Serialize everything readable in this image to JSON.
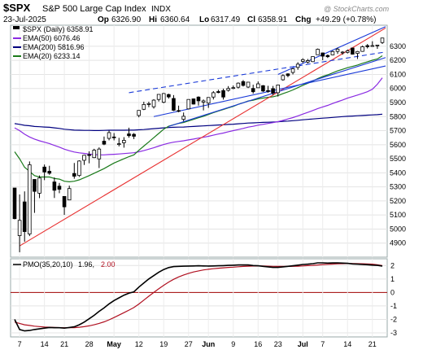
{
  "header": {
    "symbol": "$SPX",
    "name": "S&P 500 Large Cap Index",
    "exchange": "INDX",
    "date": "23-Jul-2025",
    "ohlc": {
      "open_label": "Op",
      "open": "6326.90",
      "high_label": "Hi",
      "high": "6360.64",
      "low_label": "Lo",
      "low": "6317.49",
      "close_label": "Cl",
      "close": "6358.91",
      "change_label": "Chg",
      "change": "+49.29 (+0.78%)"
    },
    "watermark": "@ StockCharts.com"
  },
  "legend": {
    "price": "$SPX (Daily) 6358.91",
    "ema50": "EMA(50) 6076.46",
    "ema200": "EMA(200) 5816.96",
    "ema20": "EMA(20) 6233.14"
  },
  "pmo_legend": {
    "label": "PMO(35,20,10)",
    "value": "1.96,",
    "signal": "2.00"
  },
  "colors": {
    "candle_up": "#000000",
    "candle_down": "#000000",
    "ema20": "#1a7a1a",
    "ema50": "#8a2be2",
    "ema200": "#000080",
    "trendline_red": "#e83030",
    "trendline_blue": "#1a3ad8",
    "pmo": "#000000",
    "pmo_signal": "#b01020",
    "zero_line": "#a00000"
  },
  "x_axis": {
    "labels": [
      "7",
      "14",
      "21",
      "28",
      "May",
      "12",
      "19",
      "27",
      "Jun",
      "9",
      "16",
      "23",
      "Jul",
      "7",
      "14",
      "21"
    ],
    "bold": [
      "May",
      "Jun",
      "Jul"
    ]
  },
  "chart_data": [
    {
      "type": "candlestick",
      "title": "$SPX S&P 500 Large Cap Index",
      "ylim": [
        4800,
        6450
      ],
      "y_ticks": [
        4900,
        5000,
        5100,
        5200,
        5300,
        5400,
        5500,
        5600,
        5700,
        5800,
        5900,
        6000,
        6100,
        6200,
        6300
      ],
      "grid": true,
      "dates": [
        "2025-04-04",
        "2025-04-07",
        "2025-04-08",
        "2025-04-09",
        "2025-04-10",
        "2025-04-11",
        "2025-04-14",
        "2025-04-15",
        "2025-04-16",
        "2025-04-17",
        "2025-04-21",
        "2025-04-22",
        "2025-04-23",
        "2025-04-24",
        "2025-04-25",
        "2025-04-28",
        "2025-04-29",
        "2025-04-30",
        "2025-05-01",
        "2025-05-02",
        "2025-05-05",
        "2025-05-06",
        "2025-05-07",
        "2025-05-08",
        "2025-05-09",
        "2025-05-12",
        "2025-05-13",
        "2025-05-14",
        "2025-05-15",
        "2025-05-16",
        "2025-05-19",
        "2025-05-20",
        "2025-05-21",
        "2025-05-22",
        "2025-05-23",
        "2025-05-27",
        "2025-05-28",
        "2025-05-29",
        "2025-05-30",
        "2025-06-02",
        "2025-06-03",
        "2025-06-04",
        "2025-06-05",
        "2025-06-06",
        "2025-06-09",
        "2025-06-10",
        "2025-06-11",
        "2025-06-12",
        "2025-06-13",
        "2025-06-16",
        "2025-06-17",
        "2025-06-18",
        "2025-06-20",
        "2025-06-23",
        "2025-06-24",
        "2025-06-25",
        "2025-06-26",
        "2025-06-27",
        "2025-06-30",
        "2025-07-01",
        "2025-07-02",
        "2025-07-03",
        "2025-07-07",
        "2025-07-08",
        "2025-07-09",
        "2025-07-10",
        "2025-07-11",
        "2025-07-14",
        "2025-07-15",
        "2025-07-16",
        "2025-07-17",
        "2025-07-18",
        "2025-07-21",
        "2025-07-22",
        "2025-07-23"
      ],
      "ohlc": [
        [
          5292,
          5292,
          5069,
          5074
        ],
        [
          4953,
          5246,
          4835,
          5062
        ],
        [
          5193,
          5268,
          4910,
          4982
        ],
        [
          4965,
          5481,
          4950,
          5457
        ],
        [
          5353,
          5353,
          5115,
          5268
        ],
        [
          5255,
          5381,
          5220,
          5363
        ],
        [
          5441,
          5459,
          5348,
          5406
        ],
        [
          5411,
          5450,
          5386,
          5397
        ],
        [
          5335,
          5367,
          5221,
          5276
        ],
        [
          5305,
          5328,
          5255,
          5283
        ],
        [
          5232,
          5232,
          5101,
          5158
        ],
        [
          5207,
          5309,
          5207,
          5288
        ],
        [
          5395,
          5470,
          5358,
          5376
        ],
        [
          5381,
          5489,
          5371,
          5484
        ],
        [
          5489,
          5528,
          5456,
          5525
        ],
        [
          5529,
          5553,
          5468,
          5528
        ],
        [
          5508,
          5571,
          5505,
          5561
        ],
        [
          5499,
          5581,
          5434,
          5569
        ],
        [
          5625,
          5658,
          5597,
          5604
        ],
        [
          5645,
          5700,
          5631,
          5686
        ],
        [
          5655,
          5683,
          5631,
          5650
        ],
        [
          5605,
          5649,
          5588,
          5607
        ],
        [
          5614,
          5654,
          5579,
          5631
        ],
        [
          5677,
          5721,
          5650,
          5664
        ],
        [
          5674,
          5683,
          5640,
          5660
        ],
        [
          5808,
          5844,
          5795,
          5844
        ],
        [
          5852,
          5906,
          5846,
          5886
        ],
        [
          5886,
          5906,
          5867,
          5892
        ],
        [
          5870,
          5924,
          5857,
          5917
        ],
        [
          5922,
          5958,
          5907,
          5958
        ],
        [
          5902,
          5968,
          5895,
          5964
        ],
        [
          5957,
          5963,
          5928,
          5940
        ],
        [
          5929,
          5953,
          5840,
          5845
        ],
        [
          5843,
          5878,
          5831,
          5842
        ],
        [
          5781,
          5829,
          5767,
          5802
        ],
        [
          5855,
          5922,
          5851,
          5922
        ],
        [
          5926,
          5929,
          5886,
          5889
        ],
        [
          5939,
          5944,
          5878,
          5912
        ],
        [
          5903,
          5922,
          5844,
          5912
        ],
        [
          5896,
          5937,
          5862,
          5936
        ],
        [
          5939,
          5981,
          5922,
          5970
        ],
        [
          5978,
          5991,
          5966,
          5971
        ],
        [
          5985,
          5999,
          5921,
          5939
        ],
        [
          5987,
          6017,
          5978,
          6000
        ],
        [
          6004,
          6021,
          5995,
          6006
        ],
        [
          6009,
          6043,
          6000,
          6038
        ],
        [
          6049,
          6060,
          6014,
          6022
        ],
        [
          6010,
          6045,
          6003,
          6045
        ],
        [
          6000,
          6027,
          5963,
          5977
        ],
        [
          6005,
          6050,
          6005,
          6033
        ],
        [
          6020,
          6024,
          5975,
          5982
        ],
        [
          5985,
          6019,
          5970,
          5981
        ],
        [
          5999,
          6018,
          5952,
          5967
        ],
        [
          5970,
          6028,
          5943,
          6025
        ],
        [
          6062,
          6101,
          6055,
          6092
        ],
        [
          6104,
          6108,
          6080,
          6092
        ],
        [
          6114,
          6146,
          6100,
          6141
        ],
        [
          6150,
          6187,
          6133,
          6173
        ],
        [
          6193,
          6215,
          6181,
          6205
        ],
        [
          6188,
          6210,
          6178,
          6198
        ],
        [
          6191,
          6227,
          6188,
          6227
        ],
        [
          6240,
          6284,
          6240,
          6279
        ],
        [
          6253,
          6255,
          6201,
          6230
        ],
        [
          6235,
          6242,
          6217,
          6226
        ],
        [
          6239,
          6269,
          6237,
          6263
        ],
        [
          6264,
          6290,
          6246,
          6280
        ],
        [
          6255,
          6266,
          6240,
          6259
        ],
        [
          6257,
          6277,
          6249,
          6268
        ],
        [
          6288,
          6289,
          6241,
          6244
        ],
        [
          6250,
          6267,
          6210,
          6263
        ],
        [
          6264,
          6305,
          6261,
          6297
        ],
        [
          6305,
          6316,
          6285,
          6297
        ],
        [
          6304,
          6336,
          6300,
          6305
        ],
        [
          6307,
          6310,
          6282,
          6309
        ],
        [
          6327,
          6361,
          6317,
          6359
        ]
      ],
      "ema20": [
        5550,
        5500,
        5440,
        5410,
        5380,
        5370,
        5370,
        5370,
        5360,
        5355,
        5340,
        5336,
        5340,
        5350,
        5365,
        5380,
        5397,
        5413,
        5430,
        5450,
        5470,
        5485,
        5500,
        5515,
        5528,
        5560,
        5590,
        5620,
        5650,
        5680,
        5710,
        5732,
        5742,
        5752,
        5758,
        5770,
        5780,
        5792,
        5802,
        5815,
        5828,
        5840,
        5850,
        5862,
        5873,
        5887,
        5898,
        5911,
        5917,
        5926,
        5932,
        5937,
        5941,
        5950,
        5963,
        5975,
        5990,
        6006,
        6023,
        6037,
        6053,
        6071,
        6085,
        6097,
        6111,
        6125,
        6136,
        6148,
        6157,
        6167,
        6179,
        6190,
        6201,
        6210,
        6233
      ],
      "ema50": [
        5720,
        5700,
        5675,
        5655,
        5640,
        5628,
        5618,
        5608,
        5595,
        5583,
        5568,
        5557,
        5548,
        5542,
        5538,
        5533,
        5530,
        5528,
        5528,
        5530,
        5532,
        5534,
        5537,
        5540,
        5543,
        5550,
        5558,
        5568,
        5578,
        5590,
        5601,
        5611,
        5618,
        5623,
        5628,
        5634,
        5640,
        5647,
        5653,
        5660,
        5668,
        5676,
        5683,
        5692,
        5700,
        5708,
        5716,
        5725,
        5731,
        5739,
        5745,
        5751,
        5757,
        5764,
        5773,
        5783,
        5793,
        5805,
        5818,
        5830,
        5843,
        5857,
        5869,
        5880,
        5893,
        5906,
        5918,
        5931,
        5942,
        5953,
        5965,
        5977,
        5995,
        6030,
        6076
      ],
      "ema200": [
        5750,
        5745,
        5738,
        5735,
        5730,
        5728,
        5726,
        5724,
        5720,
        5716,
        5710,
        5707,
        5704,
        5703,
        5702,
        5702,
        5701,
        5701,
        5702,
        5703,
        5703,
        5703,
        5703,
        5704,
        5704,
        5706,
        5708,
        5711,
        5714,
        5717,
        5720,
        5722,
        5724,
        5725,
        5726,
        5728,
        5730,
        5732,
        5734,
        5736,
        5738,
        5740,
        5742,
        5744,
        5746,
        5749,
        5751,
        5754,
        5755,
        5757,
        5759,
        5760,
        5761,
        5763,
        5766,
        5768,
        5771,
        5774,
        5777,
        5780,
        5783,
        5786,
        5789,
        5791,
        5794,
        5797,
        5800,
        5802,
        5804,
        5806,
        5808,
        5810,
        5812,
        5814,
        5817
      ],
      "trendlines": [
        {
          "color": "red",
          "from": [
            "2025-04-07",
            4880
          ],
          "to": [
            "2025-07-23",
            6430
          ]
        },
        {
          "color": "blue",
          "from": [
            "2025-06-23",
            6100
          ],
          "to": [
            "2025-07-23",
            6440
          ]
        },
        {
          "color": "blue",
          "from": [
            "2025-05-20",
            5730
          ],
          "to": [
            "2025-07-23",
            6220
          ]
        },
        {
          "color": "blue",
          "from": [
            "2025-05-15",
            5800
          ],
          "to": [
            "2025-07-23",
            6160
          ]
        },
        {
          "color": "blue",
          "dashed": true,
          "from": [
            "2025-05-08",
            5970
          ],
          "to": [
            "2025-07-23",
            6260
          ]
        }
      ]
    },
    {
      "type": "line",
      "title": "PMO(35,20,10)",
      "ylim": [
        -3.3,
        2.5
      ],
      "y_ticks": [
        2,
        1,
        0,
        -1,
        -2,
        -3
      ],
      "grid": true,
      "series": [
        {
          "name": "PMO",
          "values": [
            -2.0,
            -2.75,
            -2.85,
            -2.82,
            -2.75,
            -2.7,
            -2.65,
            -2.6,
            -2.62,
            -2.62,
            -2.65,
            -2.6,
            -2.55,
            -2.4,
            -2.2,
            -1.95,
            -1.7,
            -1.4,
            -1.15,
            -0.85,
            -0.6,
            -0.4,
            -0.2,
            -0.05,
            0.05,
            0.4,
            0.7,
            1.0,
            1.25,
            1.5,
            1.7,
            1.85,
            1.92,
            1.94,
            1.95,
            1.96,
            1.97,
            1.98,
            1.97,
            1.96,
            1.97,
            1.98,
            1.99,
            2.01,
            2.02,
            2.04,
            2.04,
            2.04,
            2.0,
            1.98,
            1.94,
            1.9,
            1.86,
            1.86,
            1.9,
            1.94,
            1.98,
            2.03,
            2.08,
            2.1,
            2.14,
            2.2,
            2.2,
            2.18,
            2.19,
            2.2,
            2.18,
            2.16,
            2.12,
            2.1,
            2.08,
            2.06,
            2.03,
            2.01,
            1.96
          ]
        },
        {
          "name": "Signal",
          "values": [
            -2.2,
            -2.3,
            -2.4,
            -2.45,
            -2.5,
            -2.53,
            -2.56,
            -2.58,
            -2.6,
            -2.61,
            -2.62,
            -2.62,
            -2.61,
            -2.58,
            -2.54,
            -2.48,
            -2.4,
            -2.3,
            -2.18,
            -2.03,
            -1.86,
            -1.68,
            -1.5,
            -1.31,
            -1.12,
            -0.86,
            -0.57,
            -0.28,
            0.0,
            0.27,
            0.53,
            0.77,
            0.98,
            1.15,
            1.3,
            1.42,
            1.52,
            1.6,
            1.67,
            1.72,
            1.76,
            1.8,
            1.83,
            1.86,
            1.88,
            1.91,
            1.93,
            1.95,
            1.96,
            1.96,
            1.96,
            1.95,
            1.94,
            1.93,
            1.93,
            1.93,
            1.94,
            1.95,
            1.97,
            1.99,
            2.01,
            2.04,
            2.07,
            2.09,
            2.11,
            2.13,
            2.14,
            2.15,
            2.15,
            2.14,
            2.13,
            2.12,
            2.1,
            2.06,
            2.0
          ]
        }
      ]
    }
  ]
}
